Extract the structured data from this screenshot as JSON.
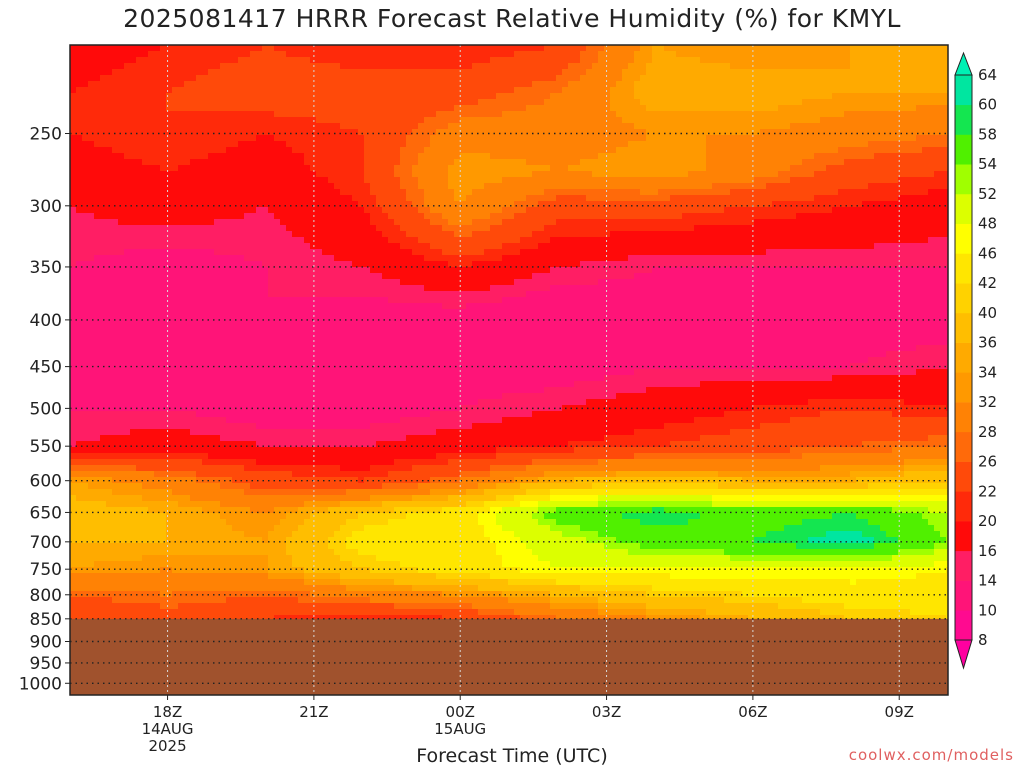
{
  "chart_data": {
    "type": "heatmap",
    "title": "2025081417 HRRR Forecast Relative Humidity (%) for KMYL",
    "xlabel": "Forecast Time (UTC)",
    "credit": "coolwx.com/models",
    "y_ticks": [
      250,
      300,
      350,
      400,
      450,
      500,
      550,
      600,
      650,
      700,
      750,
      800,
      850,
      900,
      950,
      1000
    ],
    "y_range_hpa": [
      200,
      1030
    ],
    "y_scale": "log-pressure (inverted)",
    "x_range_hours": [
      -1,
      17
    ],
    "x_ticks": [
      {
        "hour": 1,
        "lines": [
          "18Z",
          "14AUG",
          "2025"
        ]
      },
      {
        "hour": 4,
        "lines": [
          "21Z"
        ]
      },
      {
        "hour": 7,
        "lines": [
          "00Z",
          "15AUG"
        ]
      },
      {
        "hour": 10,
        "lines": [
          "03Z"
        ]
      },
      {
        "hour": 13,
        "lines": [
          "06Z"
        ]
      },
      {
        "hour": 16,
        "lines": [
          "09Z"
        ]
      }
    ],
    "grid": true,
    "below_ground_hpa": 850,
    "colorbar": {
      "levels": [
        8,
        10,
        14,
        16,
        20,
        22,
        26,
        28,
        32,
        34,
        36,
        40,
        42,
        46,
        48,
        52,
        54,
        58,
        60,
        64
      ],
      "colors": [
        "#ff00a0",
        "#ff0a90",
        "#ff1478",
        "#ff1e64",
        "#ff0a0a",
        "#ff2a0a",
        "#ff4a0a",
        "#ff6a0a",
        "#ff8205",
        "#ff9900",
        "#ffaa00",
        "#ffbe00",
        "#ffd200",
        "#ffe600",
        "#ffff00",
        "#dcff00",
        "#a0ff00",
        "#50f000",
        "#14e650",
        "#00e6a0",
        "#00f0b4"
      ]
    },
    "rh_field": {
      "pressure_levels": [
        200,
        225,
        250,
        275,
        300,
        350,
        400,
        450,
        500,
        550,
        600,
        650,
        700,
        750,
        800,
        850
      ],
      "hours": [
        -1,
        1,
        3,
        5,
        7,
        9,
        11,
        13,
        15,
        17
      ],
      "values": [
        [
          18,
          20,
          22,
          20,
          20,
          22,
          34,
          32,
          34,
          36
        ],
        [
          20,
          22,
          24,
          24,
          24,
          28,
          36,
          36,
          34,
          34
        ],
        [
          20,
          22,
          20,
          22,
          30,
          30,
          32,
          32,
          30,
          28
        ],
        [
          18,
          20,
          18,
          22,
          34,
          32,
          34,
          30,
          24,
          22
        ],
        [
          16,
          18,
          16,
          20,
          32,
          24,
          24,
          22,
          20,
          18
        ],
        [
          14,
          12,
          14,
          16,
          20,
          16,
          14,
          14,
          14,
          14
        ],
        [
          12,
          12,
          14,
          12,
          12,
          10,
          12,
          12,
          12,
          12
        ],
        [
          14,
          12,
          12,
          12,
          12,
          12,
          14,
          14,
          14,
          16
        ],
        [
          14,
          14,
          12,
          12,
          14,
          16,
          18,
          20,
          22,
          20
        ],
        [
          16,
          18,
          16,
          16,
          18,
          20,
          22,
          24,
          26,
          28
        ],
        [
          34,
          30,
          24,
          22,
          28,
          36,
          38,
          36,
          36,
          40
        ],
        [
          38,
          36,
          32,
          40,
          44,
          56,
          60,
          56,
          58,
          52
        ],
        [
          36,
          36,
          34,
          44,
          44,
          50,
          56,
          58,
          62,
          54
        ],
        [
          34,
          32,
          34,
          40,
          44,
          48,
          48,
          48,
          48,
          46
        ],
        [
          26,
          28,
          26,
          30,
          32,
          36,
          40,
          42,
          44,
          44
        ],
        [
          22,
          24,
          22,
          20,
          22,
          28,
          32,
          36,
          40,
          42
        ]
      ]
    }
  }
}
